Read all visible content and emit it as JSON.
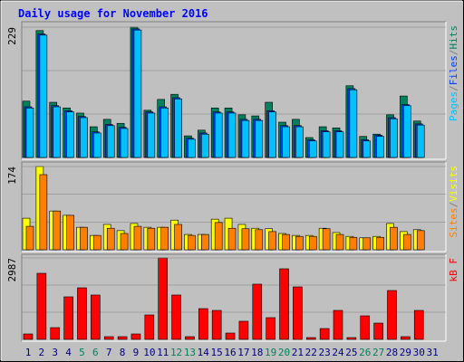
{
  "chart_data": [
    {
      "type": "bar",
      "title": "Daily usage for November 2016",
      "ylim": [
        0,
        229
      ],
      "yticks": [
        229
      ],
      "legend_separator": "/",
      "series": [
        {
          "name": "Hits",
          "color": "#00805c",
          "values": [
            99,
            223,
            97,
            87,
            78,
            54,
            67,
            60,
            229,
            83,
            102,
            111,
            38,
            48,
            87,
            87,
            75,
            73,
            97,
            62,
            67,
            35,
            54,
            52,
            126,
            37,
            41,
            75,
            108,
            64,
            null
          ]
        },
        {
          "name": "Files",
          "color": "#0040ff",
          "values": [
            89,
            217,
            91,
            82,
            72,
            45,
            58,
            53,
            226,
            80,
            89,
            105,
            34,
            43,
            80,
            80,
            67,
            67,
            82,
            56,
            56,
            31,
            47,
            47,
            121,
            31,
            39,
            70,
            93,
            59,
            null
          ]
        },
        {
          "name": "Pages",
          "color": "#00c0ff",
          "values": [
            87,
            215,
            89,
            80,
            70,
            43,
            56,
            51,
            224,
            78,
            87,
            103,
            32,
            41,
            78,
            78,
            65,
            65,
            80,
            54,
            54,
            29,
            45,
            45,
            119,
            29,
            37,
            68,
            91,
            57,
            null
          ]
        }
      ]
    },
    {
      "type": "bar",
      "ylim": [
        0,
        174
      ],
      "yticks": [
        174
      ],
      "legend_separator": "/",
      "series": [
        {
          "name": "Visits",
          "color": "#ffff00",
          "values": [
            66,
            174,
            81,
            72,
            47,
            30,
            53,
            40,
            55,
            47,
            47,
            62,
            32,
            32,
            64,
            66,
            53,
            45,
            44,
            34,
            30,
            30,
            45,
            36,
            28,
            25,
            28,
            55,
            38,
            42,
            null
          ]
        },
        {
          "name": "Sites",
          "color": "#ff8000",
          "values": [
            49,
            157,
            81,
            72,
            47,
            30,
            45,
            34,
            49,
            45,
            47,
            53,
            30,
            32,
            57,
            45,
            44,
            42,
            38,
            32,
            28,
            28,
            44,
            32,
            26,
            25,
            26,
            47,
            32,
            40,
            null
          ]
        }
      ]
    },
    {
      "type": "bar",
      "ylim": [
        0,
        2987
      ],
      "yticks": [
        2987
      ],
      "series": [
        {
          "name": "kB F",
          "color": "#ff0000",
          "values": [
            199,
            2423,
            431,
            1560,
            1892,
            1627,
            100,
            100,
            199,
            896,
            2987,
            1627,
            100,
            1128,
            1062,
            232,
            664,
            2025,
            797,
            2589,
            1925,
            66,
            398,
            1062,
            66,
            863,
            597,
            1792,
            100,
            1062,
            null
          ]
        }
      ],
      "categories": [
        "1",
        "2",
        "3",
        "4",
        "5",
        "6",
        "7",
        "8",
        "9",
        "10",
        "11",
        "12",
        "13",
        "14",
        "15",
        "16",
        "17",
        "18",
        "19",
        "20",
        "21",
        "22",
        "23",
        "24",
        "25",
        "26",
        "27",
        "28",
        "29",
        "30",
        "31"
      ],
      "label_color": "#000080",
      "weekend_color": "#00805c",
      "weekends": [
        "5",
        "6",
        "12",
        "13",
        "19",
        "20",
        "26",
        "27"
      ]
    }
  ]
}
